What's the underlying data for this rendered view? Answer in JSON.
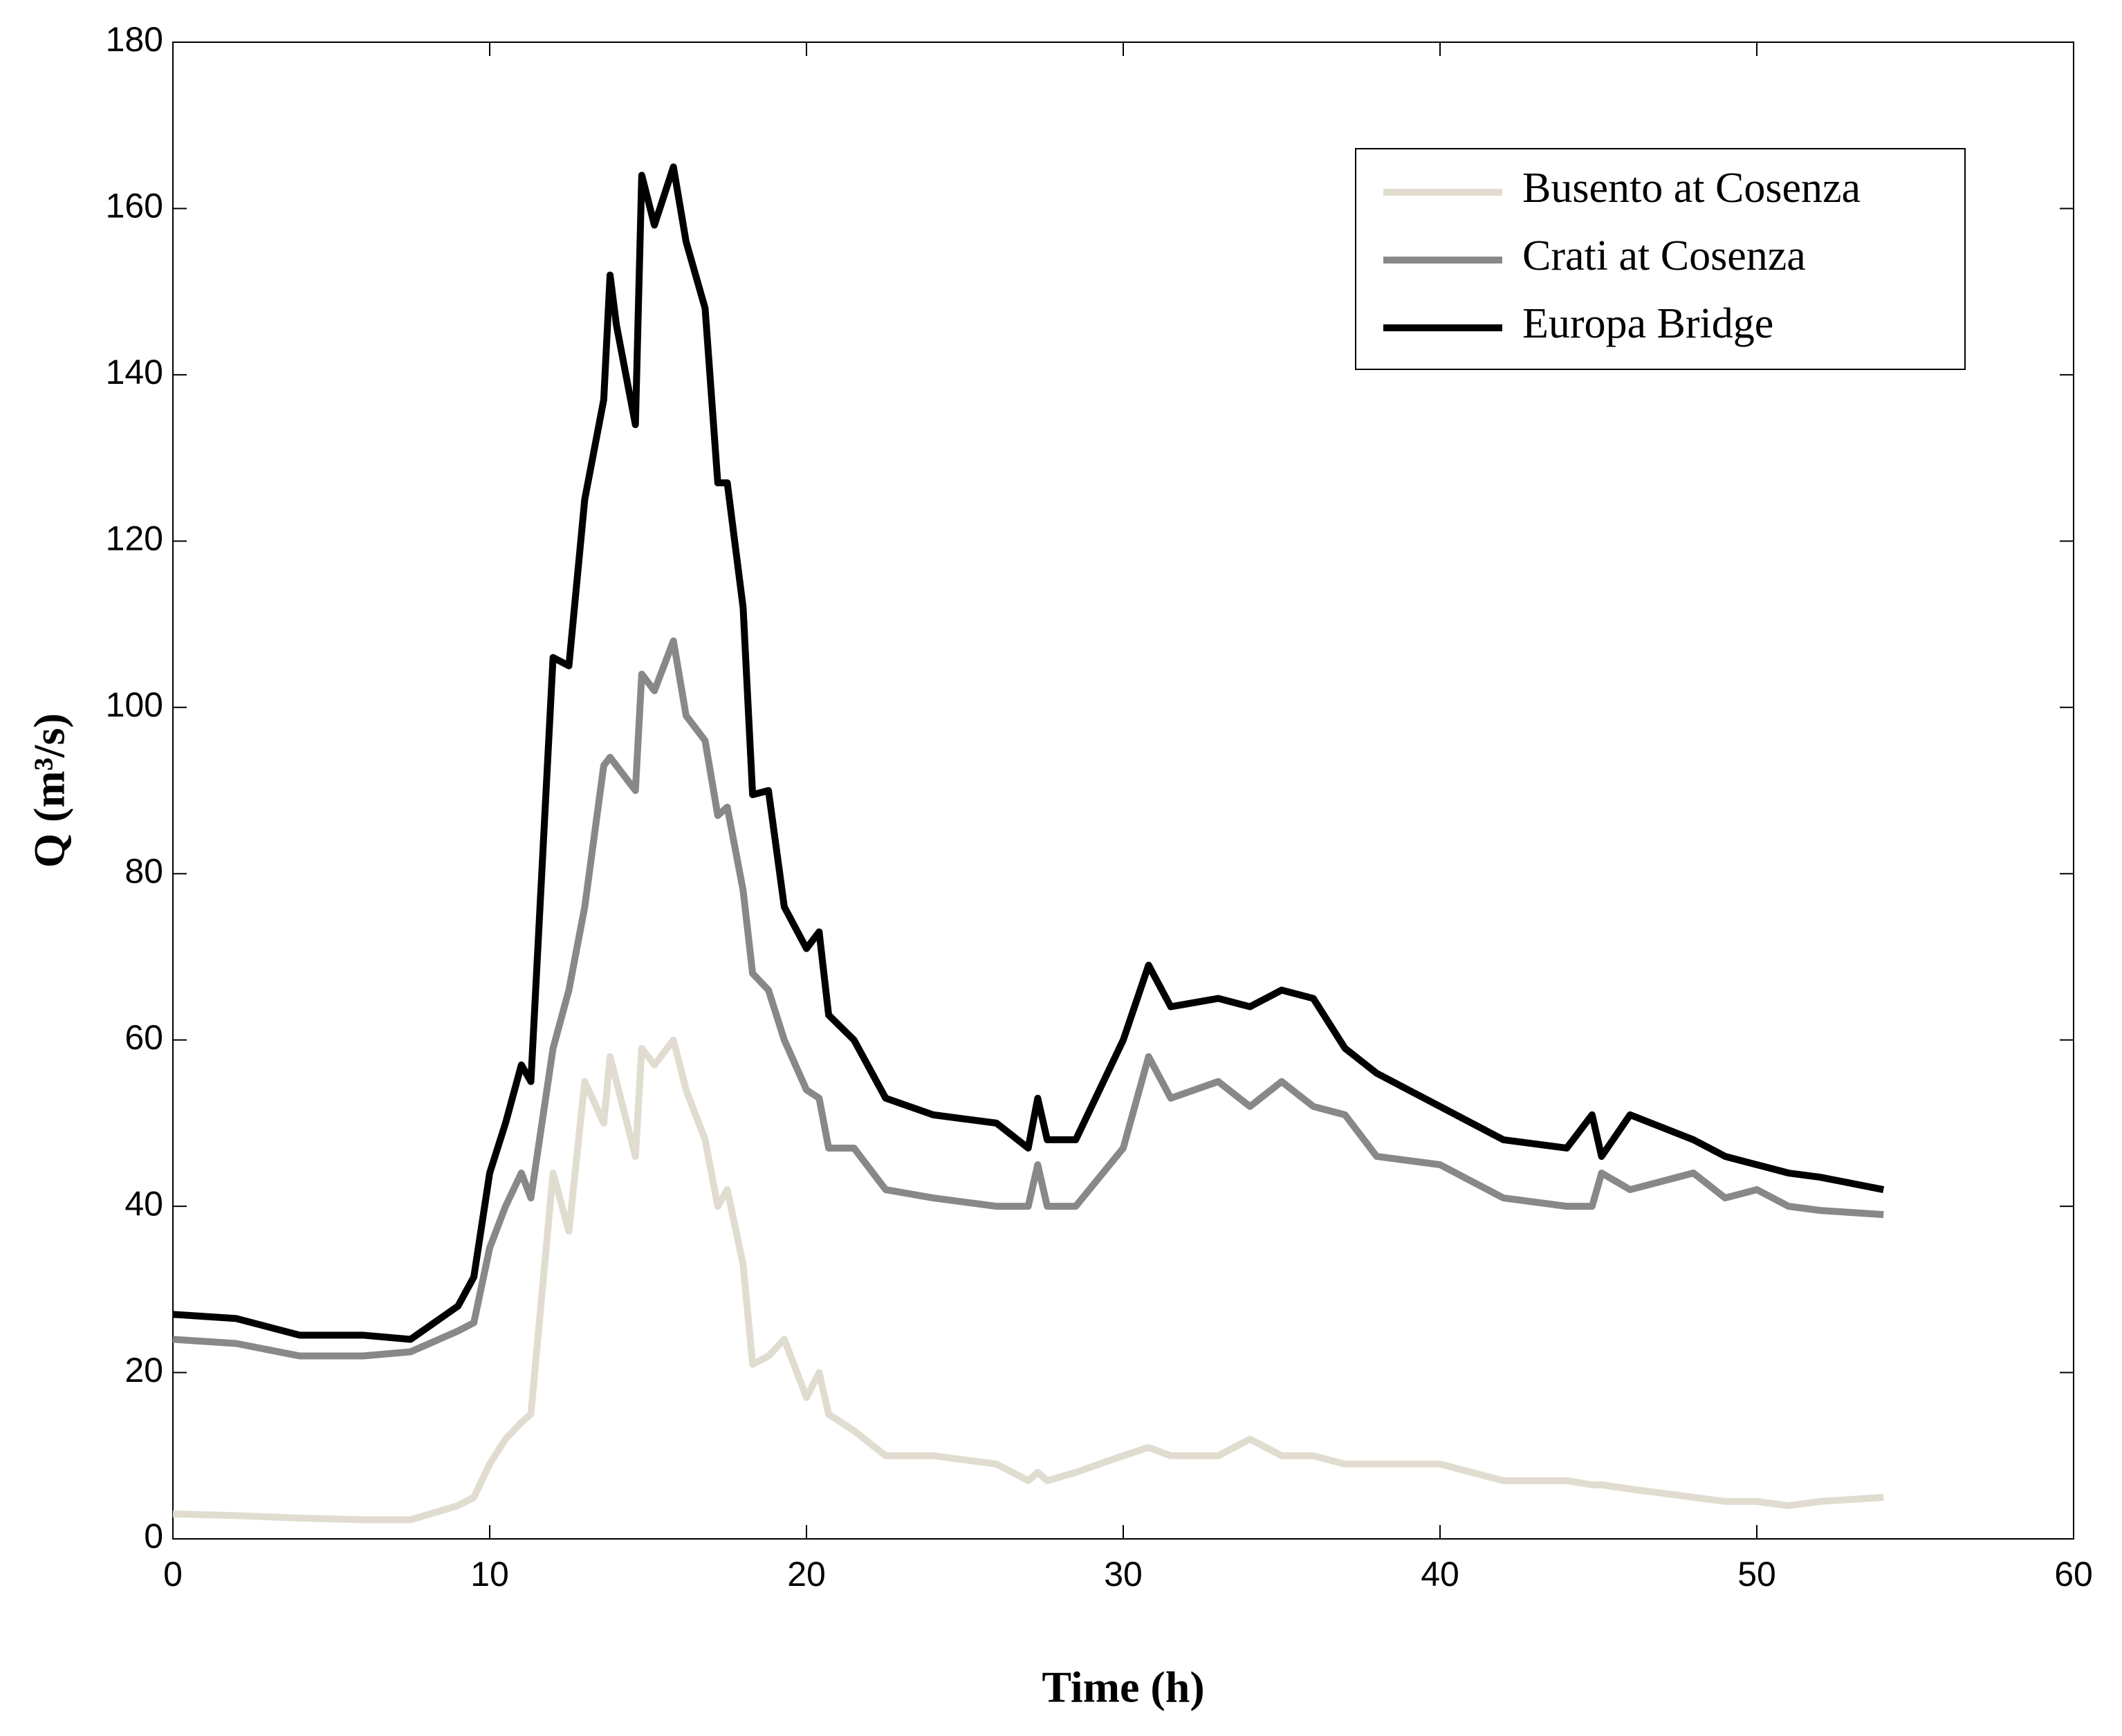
{
  "chart_data": {
    "type": "line",
    "x_label": "Time (h)",
    "y_label": "Q (m³/s)",
    "x": [
      0,
      2,
      4,
      6,
      7.5,
      9,
      9.5,
      10,
      10.5,
      11,
      11.3,
      12,
      12.5,
      13,
      13.6,
      13.8,
      14,
      14.6,
      14.8,
      15.2,
      15.8,
      16.2,
      16.8,
      17.2,
      17.5,
      18,
      18.3,
      18.8,
      19.3,
      20,
      20.4,
      20.7,
      21.5,
      22.5,
      24,
      26,
      27,
      27.3,
      27.6,
      28.5,
      30,
      30.8,
      31.5,
      33,
      34,
      35,
      36,
      37,
      38,
      40,
      42,
      44,
      44.8,
      45.1,
      46,
      48,
      49,
      50,
      51,
      52,
      54
    ],
    "series": [
      {
        "name": "Busento at Cosenza",
        "color": "#e0ddd0",
        "values": [
          3,
          2.8,
          2.5,
          2.3,
          2.3,
          4,
          5,
          9,
          12,
          14,
          15,
          44,
          37,
          55,
          50,
          58,
          55,
          46,
          59,
          57,
          60,
          54,
          48,
          40,
          42,
          33,
          21,
          22,
          24,
          17,
          20,
          15,
          13,
          10,
          10,
          9,
          7,
          8,
          7,
          8,
          10,
          11,
          10,
          10,
          12,
          10,
          10,
          9,
          9,
          9,
          7,
          7,
          6.5,
          6.5,
          6,
          5,
          4.5,
          4.5,
          4,
          4.5,
          5
        ]
      },
      {
        "name": "Crati at Cosenza",
        "color": "#888888",
        "values": [
          24,
          23.5,
          22,
          22,
          22.5,
          25,
          26,
          35,
          40,
          44,
          41,
          59,
          66,
          76,
          93,
          94,
          93,
          90,
          104,
          102,
          108,
          99,
          96,
          87,
          88,
          78,
          68,
          66,
          60,
          54,
          53,
          47,
          47,
          42,
          41,
          40,
          40,
          45,
          40,
          40,
          47,
          58,
          53,
          55,
          52,
          55,
          52,
          51,
          46,
          45,
          41,
          40,
          40,
          44,
          42,
          44,
          41,
          42,
          40,
          39.5,
          39
        ]
      },
      {
        "name": "Europa Bridge",
        "color": "#000000",
        "values": [
          27,
          26.5,
          24.5,
          24.5,
          24,
          28,
          31.5,
          44,
          50,
          57,
          55,
          106,
          105,
          125,
          137,
          152,
          146,
          134,
          164,
          158,
          165,
          156,
          148,
          127,
          127,
          112,
          89.5,
          90,
          76,
          71,
          73,
          63,
          60,
          53,
          51,
          50,
          47,
          53,
          48,
          48,
          60,
          69,
          64,
          65,
          64,
          66,
          65,
          59,
          56,
          52,
          48,
          47,
          51,
          46,
          51,
          48,
          46,
          45,
          44,
          43.5,
          42
        ]
      }
    ],
    "xlim": [
      0,
      60
    ],
    "xticks": [
      0,
      10,
      20,
      30,
      40,
      50,
      60
    ],
    "ylim": [
      0,
      180
    ],
    "yticks": [
      0,
      20,
      40,
      60,
      80,
      100,
      120,
      140,
      160,
      180
    ],
    "grid": false,
    "legend": "upper right"
  }
}
